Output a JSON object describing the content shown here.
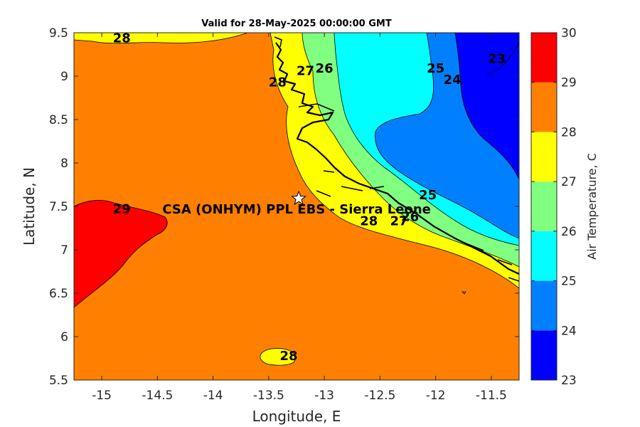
{
  "chart_data": {
    "type": "heatmap",
    "subtype": "filled contour map",
    "title": "Valid for 28-May-2025 00:00:00 GMT",
    "xlabel": "Longitude, E",
    "ylabel": "Latitude, N",
    "xlim": [
      -15.25,
      -11.25
    ],
    "ylim": [
      5.5,
      9.5
    ],
    "xticks": [
      -15,
      -14.5,
      -14,
      -13.5,
      -13,
      -12.5,
      -12,
      -11.5
    ],
    "yticks": [
      5.5,
      6,
      6.5,
      7,
      7.5,
      8,
      8.5,
      9,
      9.5
    ],
    "grid": false,
    "colorbar": {
      "label": "Air Temperature, C",
      "levels": [
        23,
        24,
        25,
        26,
        27,
        28,
        29,
        30
      ],
      "colors": [
        "#0000ff",
        "#0080ff",
        "#00ffff",
        "#80ff80",
        "#ffff00",
        "#ff8000",
        "#ff0000",
        "#800000"
      ],
      "tick_labels": [
        "23",
        "24",
        "25",
        "26",
        "27",
        "28",
        "29",
        "30"
      ]
    },
    "contour_labels": [
      {
        "text": "28",
        "lon": -14.82,
        "lat": 9.44
      },
      {
        "text": "28",
        "lon": -13.42,
        "lat": 8.93
      },
      {
        "text": "27",
        "lon": -13.17,
        "lat": 9.06
      },
      {
        "text": "26",
        "lon": -13.0,
        "lat": 9.09
      },
      {
        "text": "25",
        "lon": -12.0,
        "lat": 9.09
      },
      {
        "text": "24",
        "lon": -11.85,
        "lat": 8.96
      },
      {
        "text": "23",
        "lon": -11.45,
        "lat": 9.2
      },
      {
        "text": "29",
        "lon": -14.82,
        "lat": 7.47
      },
      {
        "text": "25",
        "lon": -12.07,
        "lat": 7.63
      },
      {
        "text": "26",
        "lon": -12.23,
        "lat": 7.38
      },
      {
        "text": "27",
        "lon": -12.33,
        "lat": 7.33
      },
      {
        "text": "28",
        "lon": -12.6,
        "lat": 7.33
      },
      {
        "text": "28",
        "lon": -13.32,
        "lat": 5.78
      }
    ],
    "annotations": [
      {
        "text": "CSA (ONHYM) PPL EBS - Sierra Leone",
        "marker": "star",
        "lon": -13.23,
        "lat": 7.59
      }
    ]
  }
}
